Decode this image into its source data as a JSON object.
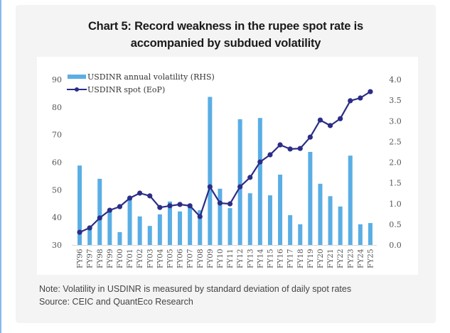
{
  "title": {
    "line1": "Chart 5: Record weakness in the rupee spot rate is",
    "line2": "accompanied by subdued volatility"
  },
  "footer": {
    "note": "Note: Volatility in USDINR is measured by standard deviation of daily spot rates",
    "source": "Source: CEIC and QuantEco Research"
  },
  "colors": {
    "bar": "#5aaee4",
    "line": "#2b2d86",
    "card": "#f4f4f4",
    "accent_strip": "#8ab8f0"
  },
  "chart_data": {
    "type": "bar+line",
    "title": "Chart 5: Record weakness in the rupee spot rate is accompanied by subdued volatility",
    "xlabel": "",
    "ylabel_left": "",
    "ylabel_right": "",
    "legend_position": "top-left",
    "grid": false,
    "categories": [
      "FY96",
      "FY97",
      "FY98",
      "FY99",
      "FY00",
      "FY01",
      "FY02",
      "FY03",
      "FY04",
      "FY05",
      "FY06",
      "FY07",
      "FY08",
      "FY09",
      "FY10",
      "FY11",
      "FY12",
      "FY13",
      "FY14",
      "FY15",
      "FY16",
      "FY17",
      "FY18",
      "FY19",
      "FY20",
      "FY21",
      "FY22",
      "FY23",
      "FY24",
      "FY25"
    ],
    "left_axis": {
      "ylim": [
        30,
        90
      ],
      "ticks": [
        "30",
        "40",
        "50",
        "60",
        "70",
        "80",
        "90"
      ]
    },
    "right_axis": {
      "ylim": [
        0.0,
        4.0
      ],
      "ticks": [
        "0.0",
        "0.5",
        "1.0",
        "1.5",
        "2.0",
        "2.5",
        "3.0",
        "3.5",
        "4.0"
      ]
    },
    "series": [
      {
        "name": "USDINR annual volatility (RHS)",
        "type": "bar",
        "axis": "right",
        "values": [
          1.92,
          0.41,
          1.6,
          0.82,
          0.31,
          1.13,
          0.69,
          0.46,
          0.74,
          1.05,
          0.81,
          0.93,
          0.84,
          3.58,
          1.36,
          0.89,
          3.04,
          1.25,
          3.07,
          1.2,
          1.7,
          0.72,
          0.5,
          2.25,
          1.48,
          1.18,
          0.93,
          2.16,
          0.5,
          0.53
        ]
      },
      {
        "name": "USDINR spot (EoP)",
        "type": "line",
        "axis": "left",
        "values": [
          34.6,
          36.2,
          39.8,
          42.6,
          43.9,
          47.0,
          48.8,
          47.8,
          43.6,
          44.2,
          44.7,
          44.2,
          40.3,
          51.1,
          45.2,
          44.9,
          51.1,
          54.5,
          60.1,
          62.7,
          66.3,
          64.8,
          65.0,
          69.1,
          75.3,
          73.3,
          75.8,
          82.3,
          83.3,
          85.6
        ]
      }
    ]
  }
}
